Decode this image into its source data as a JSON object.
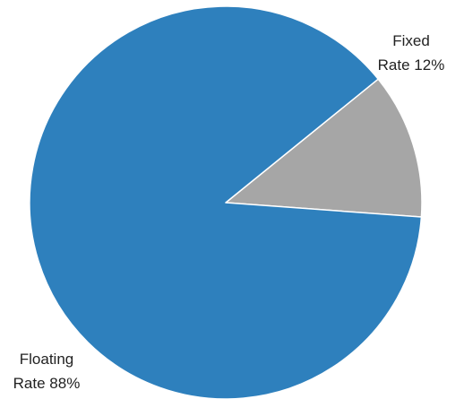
{
  "chart_data": {
    "type": "pie",
    "slices": [
      {
        "category": "Fixed Rate",
        "value": 12,
        "label_lines": [
          "Fixed",
          "Rate 12%"
        ],
        "color": "#a6a6a6",
        "label_position": "top-right"
      },
      {
        "category": "Floating Rate",
        "value": 88,
        "label_lines": [
          "Floating",
          "Rate 88%"
        ],
        "color": "#2e80bd",
        "label_position": "bottom-left"
      }
    ],
    "unit": "%",
    "legend": "none",
    "slice_border_color": "#ffffff"
  }
}
